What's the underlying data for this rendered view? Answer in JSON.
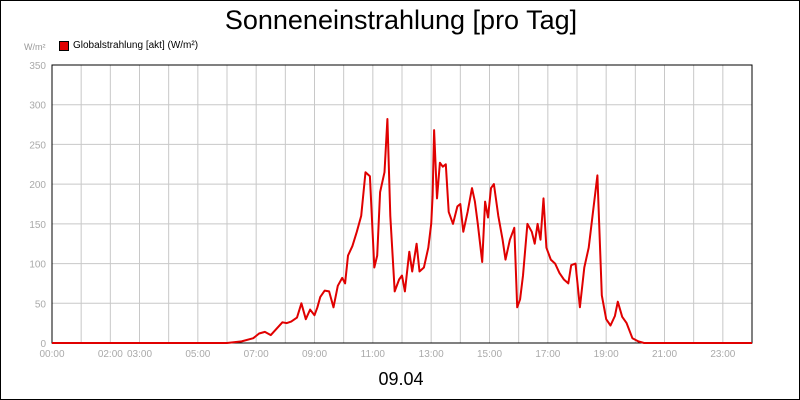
{
  "title": "Sonneneinstrahlung [pro Tag]",
  "unit_label": "W/m²",
  "legend_label": "Globalstrahlung [akt] (W/m²)",
  "date_label": "09.04",
  "colors": {
    "series": "#e00000",
    "grid": "#c8c8c8",
    "axis": "#000000",
    "tick_text": "#aaaaaa"
  },
  "chart_data": {
    "type": "line",
    "title": "Sonneneinstrahlung [pro Tag]",
    "ylabel": "W/m²",
    "xlabel": "09.04",
    "xlim": [
      0,
      24
    ],
    "ylim": [
      0,
      350
    ],
    "grid": true,
    "legend_position": "top-left",
    "y_ticks": [
      0,
      50,
      100,
      150,
      200,
      250,
      300,
      350
    ],
    "x_ticks": [
      {
        "hour": 0,
        "label": "00:00"
      },
      {
        "hour": 2,
        "label": "02:00"
      },
      {
        "hour": 3,
        "label": "03:00"
      },
      {
        "hour": 5,
        "label": "05:00"
      },
      {
        "hour": 7,
        "label": "07:00"
      },
      {
        "hour": 9,
        "label": "09:00"
      },
      {
        "hour": 11,
        "label": "11:00"
      },
      {
        "hour": 13,
        "label": "13:00"
      },
      {
        "hour": 15,
        "label": "15:00"
      },
      {
        "hour": 17,
        "label": "17:00"
      },
      {
        "hour": 19,
        "label": "19:00"
      },
      {
        "hour": 21,
        "label": "21:00"
      },
      {
        "hour": 23,
        "label": "23:00"
      }
    ],
    "vertical_gridlines": [
      0,
      1,
      2,
      3,
      4,
      5,
      6,
      7,
      8,
      9,
      10,
      11,
      12,
      13,
      14,
      15,
      16,
      17,
      18,
      19,
      20,
      21,
      22,
      23,
      24
    ],
    "series": [
      {
        "name": "Globalstrahlung [akt] (W/m²)",
        "x": [
          0,
          6.0,
          6.5,
          6.9,
          7.1,
          7.3,
          7.5,
          7.7,
          7.9,
          8.05,
          8.2,
          8.4,
          8.55,
          8.7,
          8.85,
          9.0,
          9.1,
          9.2,
          9.35,
          9.5,
          9.65,
          9.8,
          9.95,
          10.05,
          10.15,
          10.3,
          10.45,
          10.6,
          10.75,
          10.9,
          11.05,
          11.15,
          11.25,
          11.4,
          11.5,
          11.6,
          11.75,
          11.9,
          12.0,
          12.1,
          12.25,
          12.35,
          12.5,
          12.6,
          12.75,
          12.9,
          13.0,
          13.05,
          13.1,
          13.2,
          13.3,
          13.4,
          13.5,
          13.6,
          13.75,
          13.9,
          14.0,
          14.1,
          14.25,
          14.4,
          14.5,
          14.6,
          14.75,
          14.85,
          14.95,
          15.05,
          15.15,
          15.3,
          15.45,
          15.55,
          15.7,
          15.85,
          15.95,
          16.05,
          16.15,
          16.3,
          16.45,
          16.55,
          16.65,
          16.75,
          16.85,
          16.95,
          17.1,
          17.25,
          17.4,
          17.55,
          17.7,
          17.8,
          17.95,
          18.1,
          18.25,
          18.4,
          18.55,
          18.7,
          18.85,
          19.0,
          19.15,
          19.3,
          19.4,
          19.55,
          19.7,
          19.9,
          20.1,
          20.3,
          24
        ],
        "y": [
          0,
          0,
          2,
          6,
          12,
          14,
          10,
          18,
          26,
          25,
          27,
          32,
          50,
          30,
          42,
          35,
          45,
          58,
          66,
          65,
          45,
          72,
          82,
          75,
          110,
          122,
          140,
          160,
          215,
          210,
          95,
          110,
          190,
          215,
          282,
          160,
          65,
          80,
          85,
          65,
          115,
          90,
          125,
          90,
          95,
          120,
          150,
          185,
          268,
          182,
          227,
          222,
          225,
          165,
          150,
          172,
          175,
          140,
          165,
          195,
          178,
          150,
          102,
          178,
          158,
          195,
          200,
          160,
          130,
          105,
          130,
          145,
          45,
          55,
          85,
          150,
          140,
          125,
          150,
          130,
          182,
          120,
          105,
          100,
          88,
          80,
          75,
          98,
          100,
          45,
          95,
          120,
          165,
          211,
          60,
          30,
          22,
          34,
          52,
          33,
          25,
          6,
          2,
          0,
          0
        ]
      }
    ]
  }
}
